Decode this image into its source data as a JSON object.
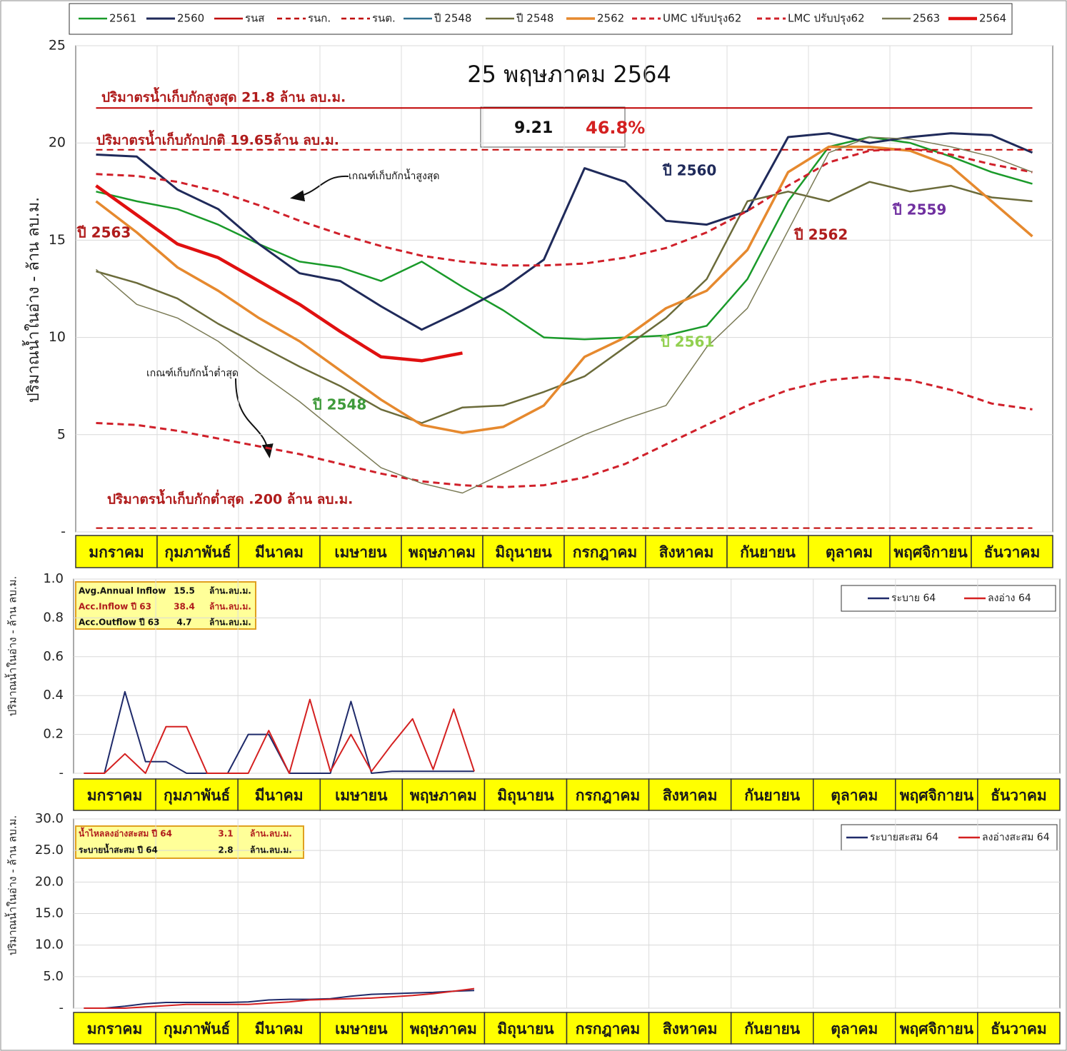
{
  "chart_data": [
    {
      "type": "line",
      "title": "25 พฤษภาคม 2564",
      "y_label": "ปริมาณน้ำในอ่าง - ล้าน ลบ.ม.",
      "categories": [
        "มกราคม",
        null,
        "กุมภาพันธ์",
        null,
        "มีนาคม",
        null,
        "เมษายน",
        null,
        "พฤษภาคม",
        null,
        "มิถุนายน",
        null,
        "กรกฎาคม",
        null,
        "สิงหาคม",
        null,
        "กันยายน",
        null,
        "ตุลาคม",
        null,
        "พฤศจิกายน",
        null,
        "ธันวาคม",
        null
      ],
      "ylim": [
        0,
        25
      ],
      "yticks": [
        {
          "value": 0,
          "label": "-"
        },
        5,
        10,
        15,
        20,
        25
      ],
      "grid": true,
      "series": [
        {
          "name": "2561",
          "color": "#1a9a2a",
          "width": 2.5,
          "dash": false,
          "values": [
            17.5,
            17.0,
            16.6,
            15.8,
            14.8,
            13.9,
            13.6,
            12.9,
            13.9,
            12.6,
            11.4,
            10.0,
            9.9,
            10.0,
            10.1,
            10.6,
            13.0,
            17.0,
            19.8,
            20.3,
            20.0,
            19.3,
            18.5,
            17.9
          ]
        },
        {
          "name": "2560",
          "color": "#1f2a5a",
          "width": 3,
          "dash": false,
          "values": [
            19.4,
            19.3,
            17.6,
            16.6,
            14.8,
            13.3,
            12.9,
            11.6,
            10.4,
            11.4,
            12.5,
            14.0,
            18.7,
            18.0,
            16.0,
            15.8,
            16.5,
            20.3,
            20.5,
            20.0,
            20.3,
            20.5,
            20.4,
            19.5
          ]
        },
        {
          "name": "รนส",
          "color": "#c00000",
          "width": 2,
          "dash": false,
          "values": [
            21.8,
            21.8,
            21.8,
            21.8,
            21.8,
            21.8,
            21.8,
            21.8,
            21.8,
            21.8,
            21.8,
            21.8,
            21.8,
            21.8,
            21.8,
            21.8,
            21.8,
            21.8,
            21.8,
            21.8,
            21.8,
            21.8,
            21.8,
            21.8
          ]
        },
        {
          "name": "รนก.",
          "color": "#c00000",
          "width": 2,
          "dash": true,
          "values": [
            19.65,
            19.65,
            19.65,
            19.65,
            19.65,
            19.65,
            19.65,
            19.65,
            19.65,
            19.65,
            19.65,
            19.65,
            19.65,
            19.65,
            19.65,
            19.65,
            19.65,
            19.65,
            19.65,
            19.65,
            19.65,
            19.65,
            19.65,
            19.65
          ]
        },
        {
          "name": "รนต.",
          "color": "#c00000",
          "width": 2,
          "dash": true,
          "values": [
            0.2,
            0.2,
            0.2,
            0.2,
            0.2,
            0.2,
            0.2,
            0.2,
            0.2,
            0.2,
            0.2,
            0.2,
            0.2,
            0.2,
            0.2,
            0.2,
            0.2,
            0.2,
            0.2,
            0.2,
            0.2,
            0.2,
            0.2,
            0.2
          ]
        },
        {
          "name": "ปี 2548",
          "color": "#2e6e8e",
          "width": 2.5,
          "dash": false,
          "values": [
            null,
            null,
            null,
            null,
            null,
            null,
            null,
            null,
            null,
            null,
            null,
            null,
            null,
            null,
            null,
            null,
            null,
            null,
            null,
            null,
            null,
            null,
            null,
            null
          ]
        },
        {
          "name": "ปี 2548",
          "color": "#6b6b3a",
          "width": 2.5,
          "dash": false,
          "values": [
            13.4,
            12.8,
            12.0,
            10.7,
            9.6,
            8.5,
            7.5,
            6.3,
            5.6,
            6.4,
            6.5,
            7.2,
            8.0,
            9.5,
            11.0,
            13.0,
            17.0,
            17.5,
            17.0,
            18.0,
            17.5,
            17.8,
            17.2,
            17.0
          ]
        },
        {
          "name": "2562",
          "color": "#e6892e",
          "width": 3.5,
          "dash": false,
          "values": [
            17.0,
            15.4,
            13.6,
            12.4,
            11.0,
            9.8,
            8.3,
            6.8,
            5.5,
            5.1,
            5.4,
            6.5,
            9.0,
            10.0,
            11.5,
            12.4,
            14.5,
            18.5,
            19.8,
            19.8,
            19.6,
            18.8,
            17.0,
            15.2
          ]
        },
        {
          "name": "UMC ปรับปรุง62",
          "color": "#d0202a",
          "width": 3,
          "dash": true,
          "values": [
            18.4,
            18.3,
            18.0,
            17.5,
            16.8,
            16.0,
            15.3,
            14.7,
            14.2,
            13.9,
            13.7,
            13.7,
            13.8,
            14.1,
            14.6,
            15.4,
            16.5,
            17.8,
            19.0,
            19.6,
            19.7,
            19.4,
            18.9,
            18.5
          ]
        },
        {
          "name": "LMC ปรับปรุง62",
          "color": "#d0202a",
          "width": 3,
          "dash": true,
          "values": [
            5.6,
            5.5,
            5.2,
            4.8,
            4.4,
            4.0,
            3.5,
            3.0,
            2.6,
            2.4,
            2.3,
            2.4,
            2.8,
            3.5,
            4.5,
            5.5,
            6.5,
            7.3,
            7.8,
            8.0,
            7.8,
            7.3,
            6.6,
            6.3
          ]
        },
        {
          "name": "2563",
          "color": "#7a7a55",
          "width": 1.5,
          "dash": false,
          "values": [
            13.5,
            11.7,
            11.0,
            9.8,
            8.2,
            6.7,
            5.0,
            3.3,
            2.5,
            2.0,
            3.0,
            4.0,
            5.0,
            5.8,
            6.5,
            9.5,
            11.5,
            15.5,
            19.5,
            20.3,
            20.2,
            19.8,
            19.3,
            18.5
          ]
        },
        {
          "name": "2564",
          "color": "#e01010",
          "width": 4.5,
          "dash": false,
          "values": [
            17.8,
            16.3,
            14.8,
            14.1,
            12.9,
            11.7,
            10.3,
            9.0,
            8.8,
            9.2,
            null,
            null,
            null,
            null,
            null,
            null,
            null,
            null,
            null,
            null,
            null,
            null,
            null,
            null
          ]
        }
      ],
      "annotations": [
        {
          "text": "ปริมาตรน้ำเก็บกักสูงสุด 21.8 ล้าน ลบ.ม.",
          "color": "#b01c1c"
        },
        {
          "text": "ปริมาตรน้ำเก็บกักปกติ 19.65ล้าน ลบ.ม.",
          "color": "#b01c1c"
        },
        {
          "text": "ปริมาตรน้ำเก็บกักต่ำสุด .200 ล้าน ลบ.ม.",
          "color": "#b01c1c"
        },
        {
          "text": "เกณฑ์เก็บกักน้ำสูงสุด",
          "color": "#111111"
        },
        {
          "text": "เกณฑ์เก็บกักน้ำต่ำสุด",
          "color": "#111111"
        },
        {
          "text": "ปี 2560",
          "color": "#1f2a5a"
        },
        {
          "text": "ปี 2559",
          "color": "#7030a0"
        },
        {
          "text": "ปี 2562",
          "color": "#b01c1c"
        },
        {
          "text": "ปี 2561",
          "color": "#92d050"
        },
        {
          "text": "ปี 2548",
          "color": "#3e9a3a"
        },
        {
          "text": "ปี 2563",
          "color": "#b01c1c"
        },
        {
          "text": "9.21",
          "color": "#111111"
        },
        {
          "text": "46.8%",
          "color": "#d42020"
        }
      ]
    },
    {
      "type": "line",
      "y_label": "ปริมาณน้ำในอ่าง - ล้าน ลบ.ม.",
      "categories": [
        "มกราคม",
        null,
        null,
        null,
        "กุมภาพันธ์",
        null,
        null,
        null,
        "มีนาคม",
        null,
        null,
        null,
        "เมษายน",
        null,
        null,
        null,
        "พฤษภาคม",
        null,
        null,
        null,
        "มิถุนายน",
        null,
        null,
        null,
        "กรกฎาคม",
        null,
        null,
        null,
        "สิงหาคม",
        null,
        null,
        null,
        "กันยายน",
        null,
        null,
        null,
        "ตุลาคม",
        null,
        null,
        null,
        "พฤศจิกายน",
        null,
        null,
        null,
        "ธันวาคม",
        null,
        null,
        null
      ],
      "ylim": [
        0,
        1
      ],
      "yticks": [
        {
          "value": 0,
          "label": "-"
        },
        0.2,
        0.4,
        0.6,
        0.8,
        {
          "value": 1,
          "label": "1.0"
        }
      ],
      "grid": true,
      "series": [
        {
          "name": "ระบาย 64",
          "color": "#1f2a6a",
          "width": 2,
          "dash": false,
          "values": [
            0,
            0,
            0.42,
            0.06,
            0.06,
            0,
            0,
            0,
            0.2,
            0.2,
            0,
            0,
            0,
            0.37,
            0,
            0.01,
            0.01,
            0.01,
            0.01,
            0.01,
            null,
            null,
            null,
            null,
            null,
            null,
            null,
            null,
            null,
            null,
            null,
            null,
            null,
            null,
            null,
            null,
            null,
            null,
            null,
            null,
            null,
            null,
            null,
            null,
            null,
            null,
            null,
            null
          ]
        },
        {
          "name": "ลงอ่าง 64",
          "color": "#d42020",
          "width": 2,
          "dash": false,
          "values": [
            0,
            0,
            0.1,
            0,
            0.24,
            0.24,
            0,
            0,
            0,
            0.22,
            0,
            0.38,
            0.01,
            0.2,
            0.01,
            0.15,
            0.28,
            0.02,
            0.33,
            0.01,
            null,
            null,
            null,
            null,
            null,
            null,
            null,
            null,
            null,
            null,
            null,
            null,
            null,
            null,
            null,
            null,
            null,
            null,
            null,
            null,
            null,
            null,
            null,
            null,
            null,
            null,
            null,
            null
          ]
        }
      ],
      "info_box": [
        {
          "label": "Avg.Annual Inflow",
          "value": 15.5,
          "unit": "ล้าน.ลบ.ม.",
          "color": "#111111"
        },
        {
          "label": "Acc.Inflow ปี 63",
          "value": 38.4,
          "unit": "ล้าน.ลบ.ม.",
          "color": "#b01c1c"
        },
        {
          "label": "Acc.Outflow ปี 63",
          "value": 4.7,
          "unit": "ล้าน.ลบ.ม.",
          "color": "#111111"
        }
      ]
    },
    {
      "type": "line",
      "y_label": "ปริมาณน้ำในอ่าง - ล้าน ลบ.ม.",
      "categories": [
        "มกราคม",
        null,
        null,
        null,
        "กุมภาพันธ์",
        null,
        null,
        null,
        "มีนาคม",
        null,
        null,
        null,
        "เมษายน",
        null,
        null,
        null,
        "พฤษภาคม",
        null,
        null,
        null,
        "มิถุนายน",
        null,
        null,
        null,
        "กรกฎาคม",
        null,
        null,
        null,
        "สิงหาคม",
        null,
        null,
        null,
        "กันยายน",
        null,
        null,
        null,
        "ตุลาคม",
        null,
        null,
        null,
        "พฤศจิกายน",
        null,
        null,
        null,
        "ธันวาคม",
        null,
        null,
        null
      ],
      "ylim": [
        0,
        30
      ],
      "yticks": [
        {
          "value": 0,
          "label": "-"
        },
        {
          "value": 5,
          "label": "5.0"
        },
        {
          "value": 10,
          "label": "10.0"
        },
        {
          "value": 15,
          "label": "15.0"
        },
        {
          "value": 20,
          "label": "20.0"
        },
        {
          "value": 25,
          "label": "25.0"
        },
        {
          "value": 30,
          "label": "30.0"
        }
      ],
      "grid": true,
      "series": [
        {
          "name": "ระบายสะสม 64",
          "color": "#1f2a6a",
          "width": 2,
          "dash": false,
          "values": [
            0,
            0,
            0.3,
            0.7,
            0.9,
            0.9,
            0.9,
            0.9,
            1.0,
            1.3,
            1.4,
            1.4,
            1.5,
            1.9,
            2.2,
            2.3,
            2.4,
            2.5,
            2.7,
            2.8,
            null,
            null,
            null,
            null,
            null,
            null,
            null,
            null,
            null,
            null,
            null,
            null,
            null,
            null,
            null,
            null,
            null,
            null,
            null,
            null,
            null,
            null,
            null,
            null,
            null,
            null,
            null,
            null
          ]
        },
        {
          "name": "ลงอ่างสะสม 64",
          "color": "#d42020",
          "width": 2,
          "dash": false,
          "values": [
            0,
            0,
            0,
            0.2,
            0.4,
            0.6,
            0.6,
            0.6,
            0.6,
            0.8,
            1.0,
            1.3,
            1.4,
            1.5,
            1.6,
            1.8,
            2.0,
            2.3,
            2.7,
            3.1,
            null,
            null,
            null,
            null,
            null,
            null,
            null,
            null,
            null,
            null,
            null,
            null,
            null,
            null,
            null,
            null,
            null,
            null,
            null,
            null,
            null,
            null,
            null,
            null,
            null,
            null,
            null,
            null
          ]
        }
      ],
      "info_box": [
        {
          "label": "น้ำไหลลงอ่างสะสม ปี 64",
          "value": 3.1,
          "unit": "ล้าน.ลบ.ม.",
          "color": "#b01c1c"
        },
        {
          "label": "ระบายน้ำสะสม ปี 64",
          "value": 2.8,
          "unit": "ล้าน.ลบ.ม.",
          "color": "#111111"
        }
      ]
    }
  ]
}
